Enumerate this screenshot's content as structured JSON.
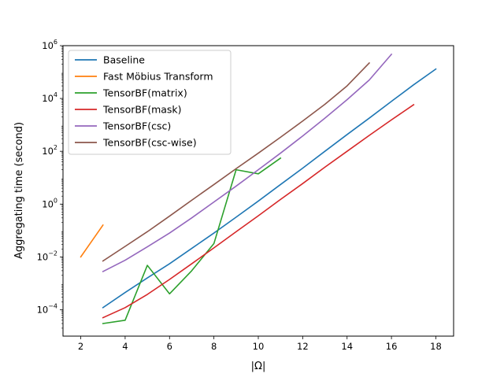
{
  "chart_data": {
    "type": "line",
    "title": "",
    "xlabel": "|Ω|",
    "ylabel": "Aggregating time (second)",
    "xlim": [
      1.2,
      18.8
    ],
    "ylim_log10": [
      -5,
      6
    ],
    "yscale": "log",
    "x_ticks": [
      {
        "value": 2,
        "label": "2"
      },
      {
        "value": 4,
        "label": "4"
      },
      {
        "value": 6,
        "label": "6"
      },
      {
        "value": 8,
        "label": "8"
      },
      {
        "value": 10,
        "label": "10"
      },
      {
        "value": 12,
        "label": "12"
      },
      {
        "value": 14,
        "label": "14"
      },
      {
        "value": 16,
        "label": "16"
      },
      {
        "value": 18,
        "label": "18"
      }
    ],
    "y_ticks": [
      {
        "exp": -4,
        "base": "10",
        "sup": "−4"
      },
      {
        "exp": -2,
        "base": "10",
        "sup": "−2"
      },
      {
        "exp": 0,
        "base": "10",
        "sup": "0"
      },
      {
        "exp": 2,
        "base": "10",
        "sup": "2"
      },
      {
        "exp": 4,
        "base": "10",
        "sup": "4"
      },
      {
        "exp": 6,
        "base": "10",
        "sup": "6"
      }
    ],
    "grid": false,
    "legend_position": "top-left",
    "series": [
      {
        "name": "Baseline",
        "color": "#1f77b4",
        "x": [
          3,
          4,
          5,
          6,
          7,
          8,
          9,
          10,
          11,
          12,
          13,
          14,
          15,
          16,
          17,
          18
        ],
        "y": [
          0.00012,
          0.00045,
          0.0016,
          0.0055,
          0.021,
          0.08,
          0.32,
          1.3,
          5.5,
          23,
          100,
          430,
          1800,
          7800,
          33000,
          130000
        ]
      },
      {
        "name": "Fast Möbius Transform",
        "color": "#ff7f0e",
        "x": [
          2,
          3
        ],
        "y": [
          0.01,
          0.16
        ]
      },
      {
        "name": "TensorBF(matrix)",
        "color": "#2ca02c",
        "x": [
          3,
          4,
          5,
          6,
          7,
          8,
          9,
          10,
          11
        ],
        "y": [
          3e-05,
          4e-05,
          0.0048,
          0.0004,
          0.003,
          0.032,
          20,
          14,
          55
        ]
      },
      {
        "name": "TensorBF(mask)",
        "color": "#d62728",
        "x": [
          3,
          4,
          5,
          6,
          7,
          8,
          9,
          10,
          11,
          12,
          13,
          14,
          15,
          16,
          17
        ],
        "y": [
          5e-05,
          0.00012,
          0.00038,
          0.0014,
          0.0055,
          0.022,
          0.09,
          0.36,
          1.5,
          6,
          25,
          100,
          400,
          1550,
          5800
        ]
      },
      {
        "name": "TensorBF(csc)",
        "color": "#9467bd",
        "x": [
          3,
          4,
          5,
          6,
          7,
          8,
          9,
          10,
          11,
          12,
          13,
          14,
          15,
          16
        ],
        "y": [
          0.0028,
          0.0075,
          0.024,
          0.08,
          0.3,
          1.2,
          4.8,
          20,
          85,
          380,
          1800,
          9000,
          50000,
          470000
        ]
      },
      {
        "name": "TensorBF(csc-wise)",
        "color": "#8c564b",
        "x": [
          3,
          4,
          5,
          6,
          7,
          8,
          9,
          10,
          11,
          12,
          13,
          14,
          15
        ],
        "y": [
          0.007,
          0.025,
          0.09,
          0.35,
          1.4,
          5.5,
          22,
          85,
          340,
          1400,
          6000,
          30000,
          220000
        ]
      }
    ]
  }
}
